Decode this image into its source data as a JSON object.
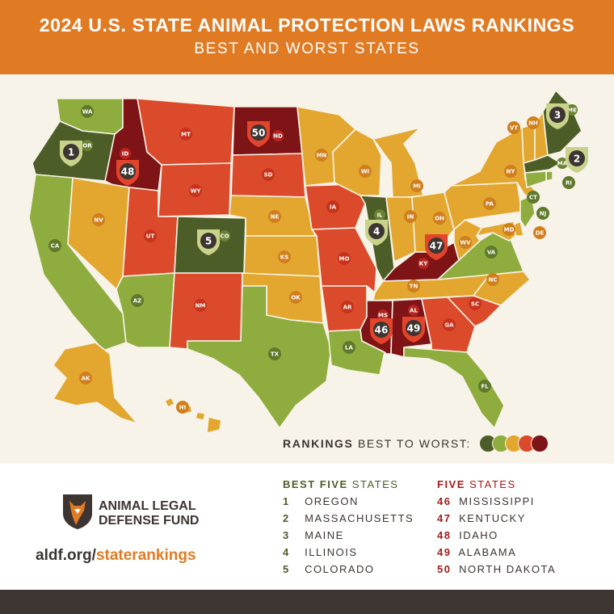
{
  "header": {
    "title": "2024 U.S. STATE ANIMAL PROTECTION LAWS RANKINGS",
    "subtitle": "BEST AND WORST STATES"
  },
  "colors": {
    "tier1": "#4d5d27",
    "tier2": "#8fac3e",
    "tier3": "#e3a72f",
    "tier4": "#db4a2b",
    "tier5": "#7e1416",
    "header": "#e07b24",
    "background": "#f7f3e8",
    "text_dark": "#3d3532"
  },
  "legend": {
    "bold": "RANKINGS",
    "rest": " BEST TO WORST:",
    "dot_colors": [
      "#4d5d27",
      "#8fac3e",
      "#e3a72f",
      "#db4a2b",
      "#7e1416"
    ]
  },
  "states": [
    {
      "abbr": "WA",
      "tier": 2
    },
    {
      "abbr": "OR",
      "tier": 1,
      "rank": "1"
    },
    {
      "abbr": "CA",
      "tier": 2
    },
    {
      "abbr": "ID",
      "tier": 5,
      "rank": "48"
    },
    {
      "abbr": "NV",
      "tier": 3
    },
    {
      "abbr": "MT",
      "tier": 4
    },
    {
      "abbr": "WY",
      "tier": 4
    },
    {
      "abbr": "UT",
      "tier": 4
    },
    {
      "abbr": "AZ",
      "tier": 2
    },
    {
      "abbr": "CO",
      "tier": 1,
      "rank": "5"
    },
    {
      "abbr": "NM",
      "tier": 4
    },
    {
      "abbr": "ND",
      "tier": 5,
      "rank": "50"
    },
    {
      "abbr": "SD",
      "tier": 4
    },
    {
      "abbr": "NE",
      "tier": 3
    },
    {
      "abbr": "KS",
      "tier": 3
    },
    {
      "abbr": "OK",
      "tier": 3
    },
    {
      "abbr": "TX",
      "tier": 2
    },
    {
      "abbr": "MN",
      "tier": 3
    },
    {
      "abbr": "IA",
      "tier": 4
    },
    {
      "abbr": "MO",
      "tier": 4
    },
    {
      "abbr": "AR",
      "tier": 4
    },
    {
      "abbr": "LA",
      "tier": 2
    },
    {
      "abbr": "WI",
      "tier": 3
    },
    {
      "abbr": "IL",
      "tier": 1,
      "rank": "4"
    },
    {
      "abbr": "MI",
      "tier": 3
    },
    {
      "abbr": "IN",
      "tier": 3
    },
    {
      "abbr": "OH",
      "tier": 3
    },
    {
      "abbr": "KY",
      "tier": 5,
      "rank": "47"
    },
    {
      "abbr": "TN",
      "tier": 3
    },
    {
      "abbr": "MS",
      "tier": 5,
      "rank": "46"
    },
    {
      "abbr": "AL",
      "tier": 5,
      "rank": "49"
    },
    {
      "abbr": "GA",
      "tier": 4
    },
    {
      "abbr": "FL",
      "tier": 2
    },
    {
      "abbr": "SC",
      "tier": 4
    },
    {
      "abbr": "NC",
      "tier": 3
    },
    {
      "abbr": "VA",
      "tier": 2
    },
    {
      "abbr": "WV",
      "tier": 3
    },
    {
      "abbr": "PA",
      "tier": 3
    },
    {
      "abbr": "NY",
      "tier": 3
    },
    {
      "abbr": "VT",
      "tier": 3
    },
    {
      "abbr": "NH",
      "tier": 3
    },
    {
      "abbr": "ME",
      "tier": 1,
      "rank": "3"
    },
    {
      "abbr": "MA",
      "tier": 1,
      "rank": "2"
    },
    {
      "abbr": "RI",
      "tier": 2
    },
    {
      "abbr": "CT",
      "tier": 2
    },
    {
      "abbr": "NJ",
      "tier": 2
    },
    {
      "abbr": "DE",
      "tier": 3
    },
    {
      "abbr": "MD",
      "tier": 3
    },
    {
      "abbr": "AK",
      "tier": 3
    },
    {
      "abbr": "HI",
      "tier": 3
    }
  ],
  "footer": {
    "org_line1": "ANIMAL LEGAL",
    "org_line2": "DEFENSE FUND",
    "url_part1": "aldf.org/",
    "url_part2": "stateranking",
    "url_part3": "s",
    "best_title_bold": "BEST FIVE",
    "best_title_rest": " STATES",
    "best": [
      {
        "n": "1",
        "name": "OREGON"
      },
      {
        "n": "2",
        "name": "MASSACHUSETTS"
      },
      {
        "n": "3",
        "name": "MAINE"
      },
      {
        "n": "4",
        "name": "ILLINOIS"
      },
      {
        "n": "5",
        "name": "COLORADO"
      }
    ],
    "worst_title_bold": "FIVE",
    "worst_title_rest": " STATES",
    "worst": [
      {
        "n": "46",
        "name": "MISSISSIPPI"
      },
      {
        "n": "47",
        "name": "KENTUCKY"
      },
      {
        "n": "48",
        "name": "IDAHO"
      },
      {
        "n": "49",
        "name": "ALABAMA"
      },
      {
        "n": "50",
        "name": "NORTH DAKOTA"
      }
    ]
  }
}
